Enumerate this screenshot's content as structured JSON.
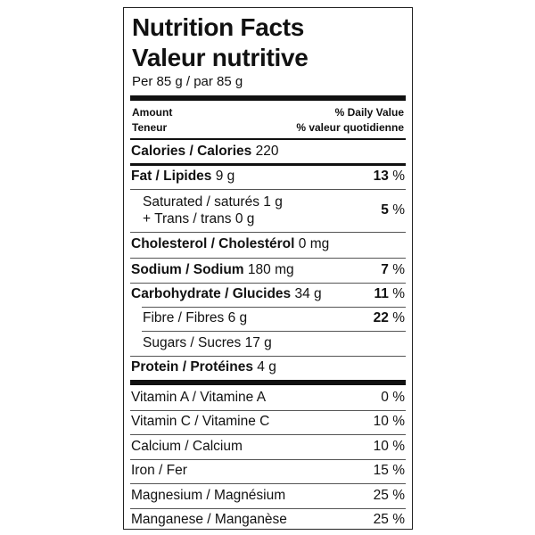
{
  "title_en": "Nutrition Facts",
  "title_fr": "Valeur nutritive",
  "serving": "Per 85 g / par 85 g",
  "header": {
    "amount": "Amount",
    "teneur": "Teneur",
    "dv_en": "% Daily Value",
    "dv_fr": "% valeur quotidienne"
  },
  "calories": {
    "label": "Calories / Calories",
    "value": "220"
  },
  "fat": {
    "label": "Fat / Lipides",
    "amount": "9 g",
    "pct": "13",
    "unit": "%"
  },
  "saturated": {
    "label": "Saturated / saturés",
    "amount": "1 g"
  },
  "trans": {
    "label": "+ Trans / trans",
    "amount": "0 g"
  },
  "sat_trans_pct": {
    "pct": "5",
    "unit": "%"
  },
  "cholesterol": {
    "label": "Cholesterol / Cholestérol",
    "amount": "0 mg"
  },
  "sodium": {
    "label": "Sodium / Sodium",
    "amount": "180 mg",
    "pct": "7",
    "unit": "%"
  },
  "carbohydrate": {
    "label": "Carbohydrate / Glucides",
    "amount": "34 g",
    "pct": "11",
    "unit": "%"
  },
  "fibre": {
    "label": "Fibre / Fibres",
    "amount": "6 g",
    "pct": "22",
    "unit": "%"
  },
  "sugars": {
    "label": "Sugars / Sucres",
    "amount": "17 g"
  },
  "protein": {
    "label": "Protein / Protéines",
    "amount": "4 g"
  },
  "vitamins": [
    {
      "label": "Vitamin A / Vitamine A",
      "pct": "0",
      "unit": "%"
    },
    {
      "label": "Vitamin C / Vitamine C",
      "pct": "10",
      "unit": "%"
    },
    {
      "label": "Calcium / Calcium",
      "pct": "10",
      "unit": "%"
    },
    {
      "label": "Iron / Fer",
      "pct": "15",
      "unit": "%"
    },
    {
      "label": "Magnesium / Magnésium",
      "pct": "25",
      "unit": "%"
    },
    {
      "label": "Manganese / Manganèse",
      "pct": "25",
      "unit": "%"
    }
  ]
}
